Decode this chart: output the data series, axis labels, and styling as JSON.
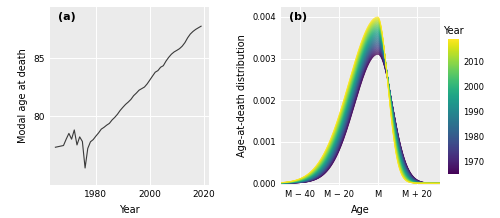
{
  "panel_a_label": "(a)",
  "panel_b_label": "(b)",
  "year_start": 1965,
  "year_end": 2019,
  "xlabel_a": "Year",
  "ylabel_a": "Modal age at death",
  "xlabel_b": "Age",
  "ylabel_b": "Age-at-death distribution",
  "xticks_a": [
    1980,
    2000,
    2020
  ],
  "yticks_a": [
    80,
    85
  ],
  "yticks_b": [
    0.0,
    0.001,
    0.002,
    0.003,
    0.004
  ],
  "xtick_labels_b": [
    "M − 40",
    "M − 20",
    "M",
    "M + 20"
  ],
  "colorbar_ticks": [
    1970,
    1980,
    1990,
    2000,
    2010
  ],
  "colorbar_label": "Year",
  "bg_color": "#ebebeb",
  "line_color_a": "#3a3a3a",
  "cmap": "viridis"
}
